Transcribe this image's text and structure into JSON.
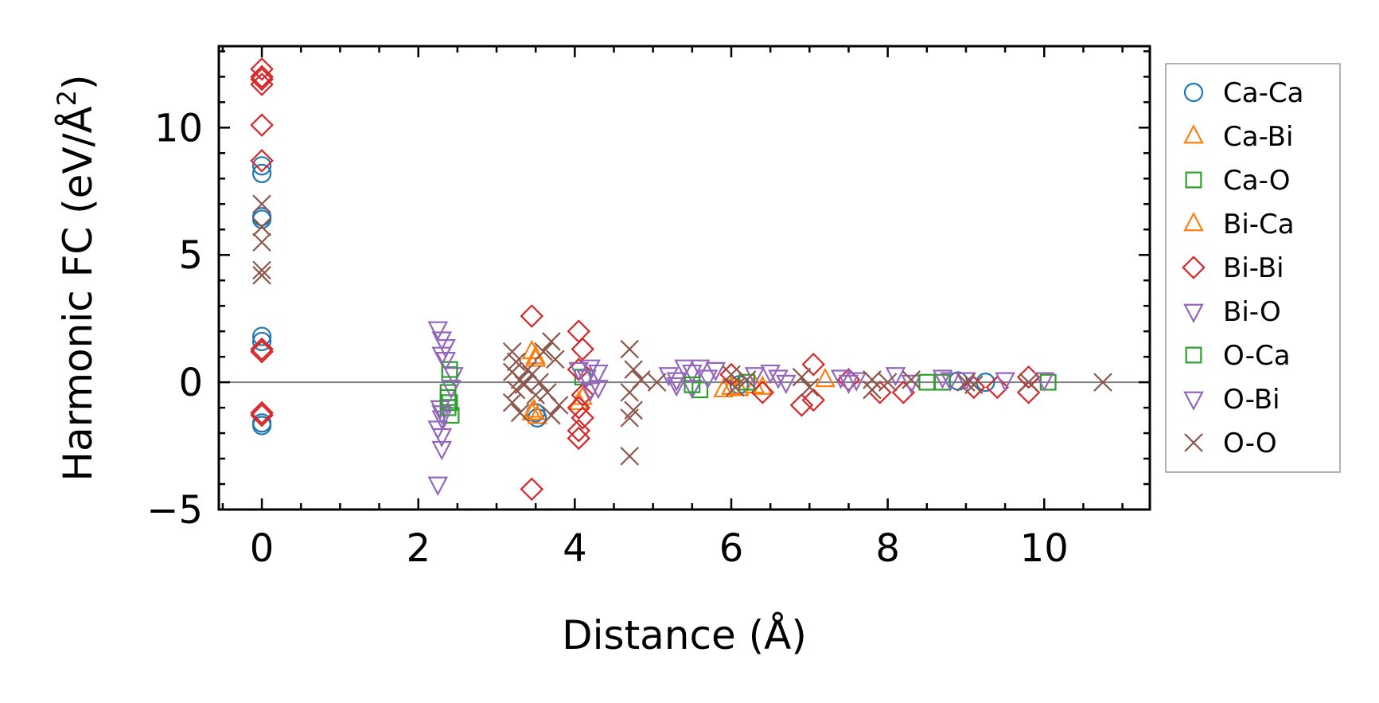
{
  "chart_data": {
    "type": "scatter",
    "title": "",
    "xlabel": "Distance (Å)",
    "ylabel_main": "Harmonic FC (eV/Å",
    "ylabel_sup": "2",
    "ylabel_close": ")",
    "xlim": [
      -0.55,
      11.35
    ],
    "ylim": [
      -5.0,
      13.2
    ],
    "xticks": [
      0,
      2,
      4,
      6,
      8,
      10
    ],
    "xtick_labels": [
      "0",
      "2",
      "4",
      "6",
      "8",
      "10"
    ],
    "yticks": [
      -5,
      0,
      5,
      10
    ],
    "ytick_labels": [
      "−5",
      "0",
      "5",
      "10"
    ],
    "zero_line": 0,
    "legend_position": "outside-right",
    "series": [
      {
        "name": "Ca-Ca",
        "marker": "circle",
        "color": "#1f77b4",
        "points": [
          [
            0,
            8.5
          ],
          [
            0,
            8.2
          ],
          [
            0,
            6.5
          ],
          [
            0,
            6.4
          ],
          [
            0,
            1.8
          ],
          [
            0,
            1.6
          ],
          [
            0,
            -1.6
          ],
          [
            0,
            -1.7
          ],
          [
            3.52,
            -1.4
          ],
          [
            3.5,
            -1.2
          ],
          [
            6.1,
            -0.1
          ],
          [
            8.9,
            0.05
          ],
          [
            9.25,
            0.0
          ]
        ]
      },
      {
        "name": "Ca-Bi",
        "marker": "triangle-up",
        "color": "#ff7f0e",
        "points": [
          [
            3.45,
            1.2
          ],
          [
            3.5,
            0.9
          ],
          [
            3.48,
            -1.1
          ],
          [
            3.52,
            -1.35
          ],
          [
            4.05,
            -0.8
          ],
          [
            4.1,
            -0.6
          ],
          [
            5.9,
            -0.3
          ],
          [
            6.1,
            -0.25
          ],
          [
            6.4,
            -0.2
          ],
          [
            7.2,
            0.1
          ]
        ]
      },
      {
        "name": "Ca-O",
        "marker": "square",
        "color": "#2ca02c",
        "points": [
          [
            2.38,
            -0.4
          ],
          [
            2.4,
            -0.8
          ],
          [
            2.42,
            -1.3
          ],
          [
            2.4,
            0.3
          ],
          [
            2.38,
            -1.0
          ],
          [
            4.1,
            0.2
          ],
          [
            5.6,
            -0.3
          ],
          [
            8.7,
            0.0
          ],
          [
            10.05,
            0.0
          ]
        ]
      },
      {
        "name": "Bi-Ca",
        "marker": "triangle-up",
        "color": "#ff7f0e",
        "points": [
          [
            3.5,
            1.0
          ],
          [
            3.45,
            -1.2
          ],
          [
            6.0,
            -0.2
          ],
          [
            6.3,
            -0.15
          ]
        ]
      },
      {
        "name": "Bi-Bi",
        "marker": "diamond",
        "color": "#d62728",
        "points": [
          [
            0,
            12.3
          ],
          [
            0,
            12.0
          ],
          [
            0,
            11.9
          ],
          [
            0,
            11.7
          ],
          [
            0,
            10.1
          ],
          [
            0,
            8.7
          ],
          [
            0,
            1.3
          ],
          [
            0,
            1.2
          ],
          [
            0,
            -1.2
          ],
          [
            0,
            -1.3
          ],
          [
            3.45,
            2.6
          ],
          [
            3.45,
            -4.2
          ],
          [
            4.05,
            2.0
          ],
          [
            4.1,
            1.3
          ],
          [
            4.05,
            0.5
          ],
          [
            4.1,
            -0.5
          ],
          [
            4.05,
            -1.0
          ],
          [
            4.1,
            -1.4
          ],
          [
            4.05,
            -1.9
          ],
          [
            4.05,
            -2.2
          ],
          [
            6.0,
            0.3
          ],
          [
            6.4,
            -0.4
          ],
          [
            6.9,
            -0.9
          ],
          [
            7.05,
            0.7
          ],
          [
            7.05,
            -0.7
          ],
          [
            7.5,
            0.1
          ],
          [
            7.9,
            -0.4
          ],
          [
            8.2,
            -0.4
          ],
          [
            9.1,
            -0.2
          ],
          [
            9.4,
            -0.2
          ],
          [
            9.8,
            0.2
          ],
          [
            9.8,
            -0.4
          ]
        ]
      },
      {
        "name": "Bi-O",
        "marker": "triangle-down",
        "color": "#9467bd",
        "points": [
          [
            2.25,
            2.1
          ],
          [
            2.3,
            1.7
          ],
          [
            2.35,
            1.4
          ],
          [
            2.3,
            1.1
          ],
          [
            2.28,
            -1.0
          ],
          [
            2.3,
            -1.4
          ],
          [
            2.25,
            -1.8
          ],
          [
            2.3,
            -2.1
          ],
          [
            2.3,
            -2.6
          ],
          [
            2.25,
            -4.0
          ],
          [
            2.45,
            0.3
          ],
          [
            2.42,
            -0.2
          ],
          [
            4.05,
            0.5
          ],
          [
            4.15,
            0.2
          ],
          [
            4.2,
            -0.3
          ],
          [
            4.3,
            0.4
          ],
          [
            4.3,
            -0.2
          ],
          [
            5.2,
            0.3
          ],
          [
            5.3,
            0.1
          ],
          [
            5.4,
            0.6
          ],
          [
            5.5,
            0.4
          ],
          [
            5.6,
            0.6
          ],
          [
            5.7,
            0.2
          ],
          [
            5.5,
            -0.2
          ],
          [
            5.3,
            -0.1
          ],
          [
            6.5,
            0.4
          ],
          [
            6.6,
            0.2
          ],
          [
            6.7,
            0.0
          ],
          [
            7.5,
            0.0
          ],
          [
            7.6,
            0.1
          ],
          [
            8.1,
            0.3
          ],
          [
            8.3,
            0.0
          ],
          [
            8.7,
            0.2
          ],
          [
            8.8,
            0.1
          ],
          [
            9.5,
            0.1
          ],
          [
            10.0,
            0.1
          ]
        ]
      },
      {
        "name": "O-Ca",
        "marker": "square",
        "color": "#2ca02c",
        "points": [
          [
            2.4,
            0.5
          ],
          [
            2.38,
            -0.6
          ],
          [
            5.5,
            -0.1
          ],
          [
            6.2,
            0.0
          ],
          [
            8.5,
            0.0
          ]
        ]
      },
      {
        "name": "O-Bi",
        "marker": "triangle-down",
        "color": "#9467bd",
        "points": [
          [
            2.3,
            -1.2
          ],
          [
            2.35,
            0.9
          ],
          [
            4.2,
            0.6
          ],
          [
            5.8,
            0.5
          ],
          [
            6.3,
            0.3
          ],
          [
            7.4,
            0.2
          ],
          [
            9.0,
            0.1
          ]
        ]
      },
      {
        "name": "O-O",
        "marker": "x",
        "color": "#8c564b",
        "points": [
          [
            0,
            7.0
          ],
          [
            0,
            6.1
          ],
          [
            0,
            5.5
          ],
          [
            0,
            4.4
          ],
          [
            0,
            4.2
          ],
          [
            3.2,
            1.2
          ],
          [
            3.25,
            0.8
          ],
          [
            3.2,
            0.4
          ],
          [
            3.3,
            0.1
          ],
          [
            3.25,
            -0.3
          ],
          [
            3.2,
            -0.8
          ],
          [
            3.3,
            -1.2
          ],
          [
            3.4,
            0.5
          ],
          [
            3.5,
            -0.5
          ],
          [
            3.6,
            1.2
          ],
          [
            3.7,
            1.6
          ],
          [
            3.65,
            -0.4
          ],
          [
            3.7,
            -1.3
          ],
          [
            3.75,
            0.9
          ],
          [
            3.8,
            -0.9
          ],
          [
            3.55,
            0.0
          ],
          [
            3.45,
            0.3
          ],
          [
            3.35,
            -0.1
          ],
          [
            4.7,
            1.3
          ],
          [
            4.75,
            0.5
          ],
          [
            4.7,
            -0.4
          ],
          [
            4.75,
            -1.1
          ],
          [
            4.7,
            -1.4
          ],
          [
            4.7,
            -2.9
          ],
          [
            4.85,
            0.1
          ],
          [
            5.05,
            0.0
          ],
          [
            6.0,
            0.3
          ],
          [
            6.05,
            -0.2
          ],
          [
            6.2,
            0.1
          ],
          [
            6.9,
            0.2
          ],
          [
            7.0,
            -0.2
          ],
          [
            7.8,
            0.1
          ],
          [
            7.8,
            -0.3
          ],
          [
            8.0,
            0.0
          ],
          [
            8.3,
            0.1
          ],
          [
            9.0,
            0.0
          ],
          [
            9.1,
            -0.1
          ],
          [
            9.8,
            0.0
          ],
          [
            10.75,
            0.0
          ]
        ]
      }
    ]
  }
}
